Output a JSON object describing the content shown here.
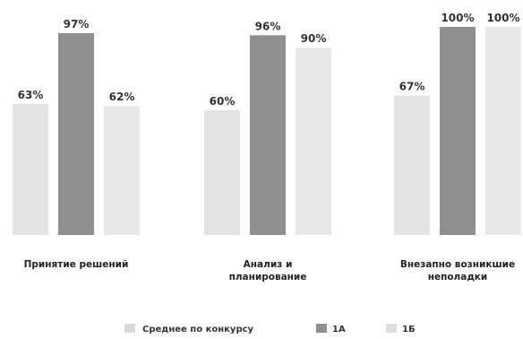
{
  "chart_data": {
    "type": "bar",
    "categories": [
      [
        "Принятие решений"
      ],
      [
        "Анализ и",
        "планирование"
      ],
      [
        "Внезапно возникшие",
        "неполадки"
      ]
    ],
    "series": [
      {
        "name": "Среднее по конкурсу",
        "values": [
          63,
          60,
          67
        ],
        "labels": [
          "63%",
          "60%",
          "67%"
        ],
        "color": "#e3e3e3"
      },
      {
        "name": "1А",
        "values": [
          97,
          96,
          100
        ],
        "labels": [
          "97%",
          "96%",
          "100%"
        ],
        "color": "#8f8f8f"
      },
      {
        "name": "1Б",
        "values": [
          62,
          90,
          100
        ],
        "labels": [
          "62%",
          "90%",
          "100%"
        ],
        "color": "#e8e8e8"
      }
    ],
    "ylim": [
      0,
      100
    ],
    "legend_position": "bottom",
    "grid": false
  },
  "legend_marker_colors": [
    "#d9d9d9",
    "#8f8f8f",
    "#dedede"
  ]
}
